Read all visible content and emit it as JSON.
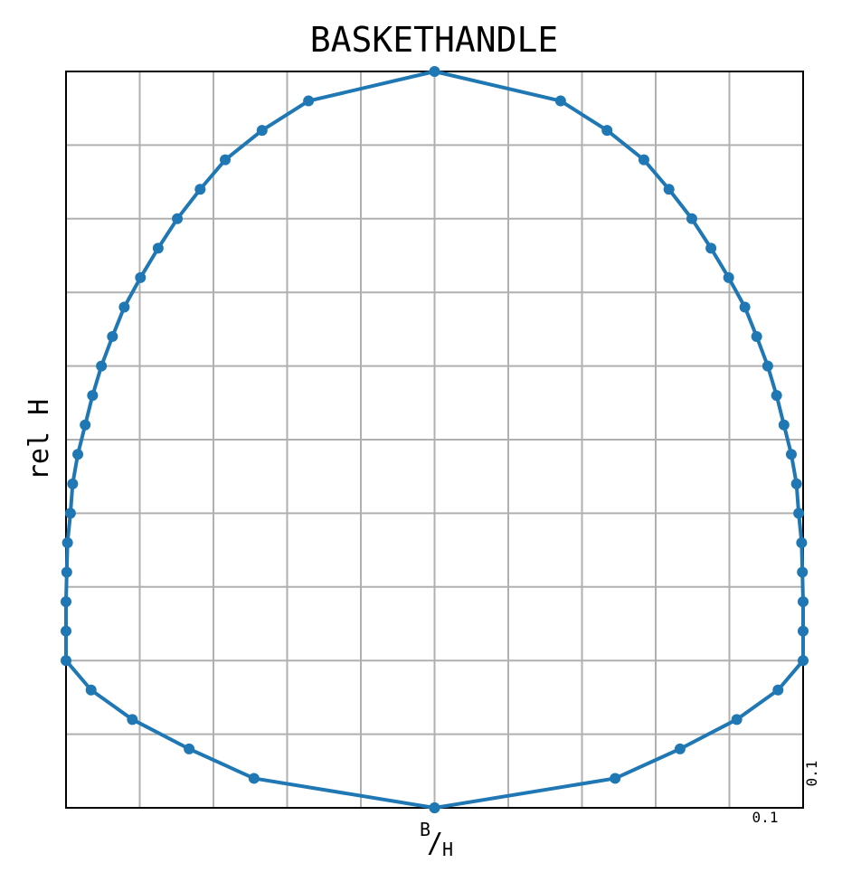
{
  "chart_data": {
    "type": "line",
    "title": "BASKETHANDLE",
    "ylabel": "rel H",
    "xlabel": [
      "B",
      "/",
      "H"
    ],
    "annotations": [
      "0.1",
      "0.1"
    ],
    "xlim": [
      -0.5,
      0.5
    ],
    "ylim": [
      0,
      1
    ],
    "xticks": [
      -0.5,
      -0.4,
      -0.3,
      -0.2,
      -0.1,
      0,
      0.1,
      0.2,
      0.3,
      0.4,
      0.5
    ],
    "yticks": [
      0,
      0.1,
      0.2,
      0.3,
      0.4,
      0.5,
      0.6,
      0.7,
      0.8,
      0.9,
      1
    ],
    "tick_labels": false,
    "grid": true,
    "markers": true,
    "series": [
      {
        "color": "#1f77b4",
        "x": [
          0,
          0.245,
          0.333,
          0.41,
          0.466,
          0.5,
          0.5,
          0.5,
          0.499,
          0.498,
          0.494,
          0.491,
          0.484,
          0.474,
          0.464,
          0.452,
          0.437,
          0.421,
          0.399,
          0.375,
          0.349,
          0.318,
          0.284,
          0.234,
          0.171,
          0,
          -0.171,
          -0.234,
          -0.284,
          -0.318,
          -0.349,
          -0.375,
          -0.399,
          -0.421,
          -0.437,
          -0.452,
          -0.464,
          -0.474,
          -0.484,
          -0.491,
          -0.494,
          -0.498,
          -0.499,
          -0.5,
          -0.5,
          -0.5,
          -0.466,
          -0.41,
          -0.333,
          -0.245,
          0
        ],
        "values": [
          0,
          0.04,
          0.08,
          0.12,
          0.16,
          0.2,
          0.24,
          0.28,
          0.32,
          0.36,
          0.4,
          0.44,
          0.48,
          0.52,
          0.56,
          0.6,
          0.64,
          0.68,
          0.72,
          0.76,
          0.8,
          0.84,
          0.88,
          0.92,
          0.96,
          1,
          0.96,
          0.92,
          0.88,
          0.84,
          0.8,
          0.76,
          0.72,
          0.68,
          0.64,
          0.6,
          0.56,
          0.52,
          0.48,
          0.44,
          0.4,
          0.36,
          0.32,
          0.28,
          0.24,
          0.2,
          0.16,
          0.12,
          0.08,
          0.04,
          0
        ]
      }
    ]
  }
}
